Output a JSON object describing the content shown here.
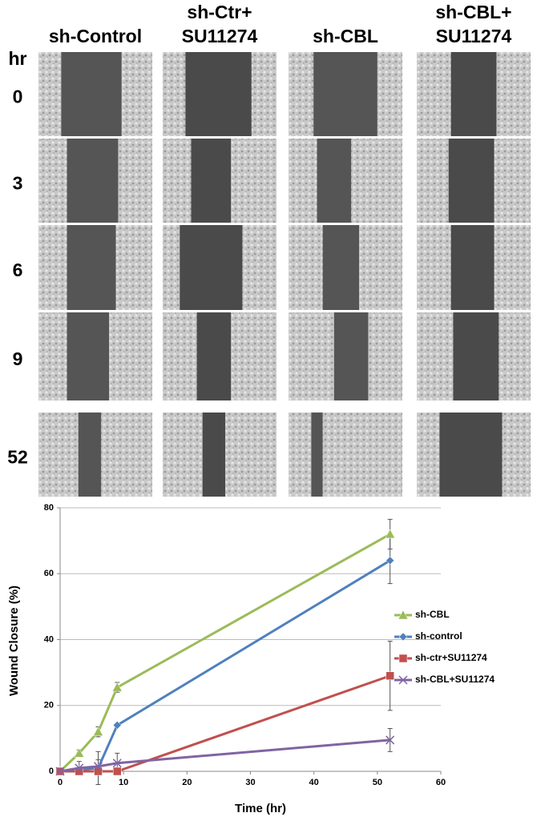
{
  "panels": {
    "columns": [
      [
        "sh-Control"
      ],
      [
        "sh-Ctr+",
        "SU11274"
      ],
      [
        "sh-CBL"
      ],
      [
        "sh-CBL+",
        "SU11274"
      ]
    ],
    "row_header": "hr",
    "rows": [
      "0",
      "3",
      "6",
      "9",
      "52"
    ]
  },
  "chart_data": {
    "type": "line",
    "xlabel": "Time (hr)",
    "ylabel": "Wound Closure (%)",
    "x": [
      0,
      3,
      6,
      9,
      52
    ],
    "series": [
      {
        "name": "sh-CBL",
        "color": "#9bbb59",
        "marker": "triangle",
        "values": [
          0,
          5.5,
          12,
          25.5,
          72
        ],
        "errors": [
          1,
          1,
          1.5,
          1.5,
          4.5
        ]
      },
      {
        "name": "sh-control",
        "color": "#4f81bd",
        "marker": "diamond",
        "values": [
          0,
          0.5,
          1,
          14,
          64
        ],
        "errors": [
          0.5,
          0.5,
          5,
          0.5,
          7
        ]
      },
      {
        "name": "sh-ctr+SU11274",
        "color": "#c0504d",
        "marker": "square",
        "values": [
          0,
          0,
          0,
          0,
          29
        ],
        "errors": [
          0.5,
          0.5,
          0.5,
          0.5,
          10.5
        ]
      },
      {
        "name": "sh-CBL+SU11274",
        "color": "#8064a2",
        "marker": "x",
        "values": [
          0,
          1,
          1.5,
          2.5,
          9.5
        ],
        "errors": [
          0.5,
          2,
          2,
          3,
          3.5
        ]
      }
    ],
    "xlim": [
      0,
      60
    ],
    "xticks": [
      0,
      10,
      20,
      30,
      40,
      50,
      60
    ],
    "ylim": [
      0,
      80
    ],
    "yticks": [
      0,
      20,
      40,
      60,
      80
    ],
    "grid": true,
    "legend": "right"
  }
}
